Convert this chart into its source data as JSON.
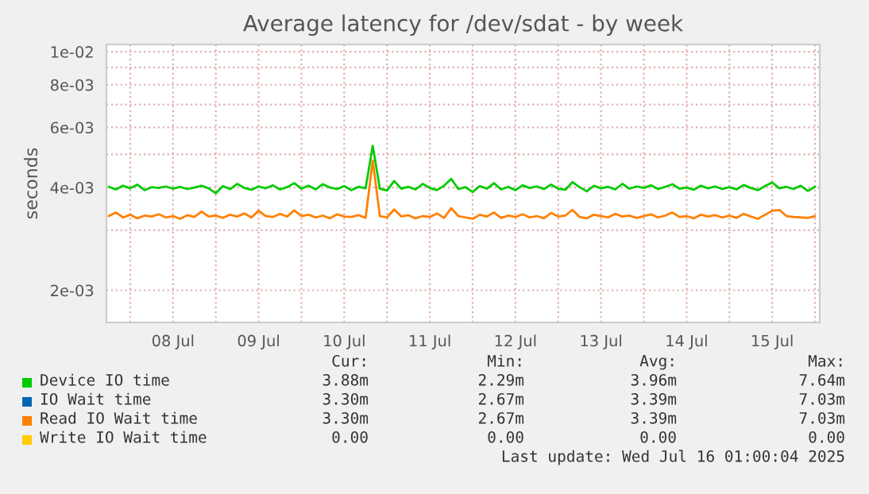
{
  "chart_data": {
    "type": "line",
    "title": "Average latency for /dev/sdat - by week",
    "ylabel": "seconds",
    "x": [
      "2025-07-07T18:00",
      "2025-07-07T20:00",
      "2025-07-07T22:00",
      "2025-07-08T00:00",
      "2025-07-08T02:00",
      "2025-07-08T04:00",
      "2025-07-08T06:00",
      "2025-07-08T08:00",
      "2025-07-08T10:00",
      "2025-07-08T12:00",
      "2025-07-08T14:00",
      "2025-07-08T16:00",
      "2025-07-08T18:00",
      "2025-07-08T20:00",
      "2025-07-08T22:00",
      "2025-07-09T00:00",
      "2025-07-09T02:00",
      "2025-07-09T04:00",
      "2025-07-09T06:00",
      "2025-07-09T08:00",
      "2025-07-09T10:00",
      "2025-07-09T12:00",
      "2025-07-09T14:00",
      "2025-07-09T16:00",
      "2025-07-09T18:00",
      "2025-07-09T20:00",
      "2025-07-09T22:00",
      "2025-07-10T00:00",
      "2025-07-10T02:00",
      "2025-07-10T04:00",
      "2025-07-10T06:00",
      "2025-07-10T08:00",
      "2025-07-10T10:00",
      "2025-07-10T12:00",
      "2025-07-10T14:00",
      "2025-07-10T16:00",
      "2025-07-10T18:00",
      "2025-07-10T20:00",
      "2025-07-10T22:00",
      "2025-07-11T00:00",
      "2025-07-11T02:00",
      "2025-07-11T04:00",
      "2025-07-11T06:00",
      "2025-07-11T08:00",
      "2025-07-11T10:00",
      "2025-07-11T12:00",
      "2025-07-11T14:00",
      "2025-07-11T16:00",
      "2025-07-11T18:00",
      "2025-07-11T20:00",
      "2025-07-11T22:00",
      "2025-07-12T00:00",
      "2025-07-12T02:00",
      "2025-07-12T04:00",
      "2025-07-12T06:00",
      "2025-07-12T08:00",
      "2025-07-12T10:00",
      "2025-07-12T12:00",
      "2025-07-12T14:00",
      "2025-07-12T16:00",
      "2025-07-12T18:00",
      "2025-07-12T20:00",
      "2025-07-12T22:00",
      "2025-07-13T00:00",
      "2025-07-13T02:00",
      "2025-07-13T04:00",
      "2025-07-13T06:00",
      "2025-07-13T08:00",
      "2025-07-13T10:00",
      "2025-07-13T12:00",
      "2025-07-13T14:00",
      "2025-07-13T16:00",
      "2025-07-13T18:00",
      "2025-07-13T20:00",
      "2025-07-13T22:00",
      "2025-07-14T00:00",
      "2025-07-14T02:00",
      "2025-07-14T04:00",
      "2025-07-14T06:00",
      "2025-07-14T08:00",
      "2025-07-14T10:00",
      "2025-07-14T12:00",
      "2025-07-14T14:00",
      "2025-07-14T16:00",
      "2025-07-14T18:00",
      "2025-07-14T20:00",
      "2025-07-14T22:00",
      "2025-07-15T00:00",
      "2025-07-15T02:00",
      "2025-07-15T04:00",
      "2025-07-15T06:00",
      "2025-07-15T08:00",
      "2025-07-15T10:00",
      "2025-07-15T12:00",
      "2025-07-15T14:00",
      "2025-07-15T16:00",
      "2025-07-15T18:00",
      "2025-07-15T20:00",
      "2025-07-15T22:00",
      "2025-07-16T00:00"
    ],
    "series": [
      {
        "name": "Device IO time",
        "color": "#00cc00",
        "values": [
          0.00402,
          0.00395,
          0.00405,
          0.00398,
          0.00408,
          0.00393,
          0.00401,
          0.00399,
          0.00403,
          0.00397,
          0.00402,
          0.00396,
          0.004,
          0.00405,
          0.00398,
          0.00385,
          0.00404,
          0.00396,
          0.0041,
          0.00399,
          0.00394,
          0.00403,
          0.00398,
          0.00406,
          0.00395,
          0.00401,
          0.00412,
          0.00397,
          0.00405,
          0.00395,
          0.00409,
          0.004,
          0.00396,
          0.00404,
          0.00393,
          0.00402,
          0.00398,
          0.0053,
          0.00397,
          0.00392,
          0.00418,
          0.00397,
          0.00402,
          0.00395,
          0.0041,
          0.00399,
          0.00393,
          0.00405,
          0.00424,
          0.00396,
          0.00401,
          0.00388,
          0.00404,
          0.00397,
          0.00412,
          0.00395,
          0.00402,
          0.00393,
          0.00406,
          0.00399,
          0.00403,
          0.00396,
          0.00408,
          0.00397,
          0.00394,
          0.00415,
          0.00401,
          0.0039,
          0.00405,
          0.00398,
          0.00402,
          0.00395,
          0.0041,
          0.00397,
          0.00403,
          0.00399,
          0.00406,
          0.00396,
          0.00402,
          0.00409,
          0.00397,
          0.004,
          0.00394,
          0.00405,
          0.00398,
          0.00403,
          0.00396,
          0.00401,
          0.00395,
          0.00407,
          0.00399,
          0.00393,
          0.00404,
          0.00414,
          0.00398,
          0.00402,
          0.00396,
          0.00405,
          0.00391,
          0.00402
        ]
      },
      {
        "name": "IO Wait time",
        "color": "#0066b3",
        "values": [
          null,
          null,
          null,
          null,
          null,
          null,
          null,
          null,
          null,
          null,
          null,
          null,
          null,
          null,
          null,
          null,
          null,
          null,
          null,
          null,
          null,
          null,
          null,
          null,
          null,
          null,
          null,
          null,
          null,
          null,
          null,
          null,
          null,
          null,
          null,
          null,
          null,
          null,
          null,
          null,
          null,
          null,
          null,
          null,
          null,
          null,
          null,
          null,
          null,
          null,
          null,
          null,
          null,
          null,
          null,
          null,
          null,
          null,
          null,
          null,
          null,
          null,
          null,
          null,
          null,
          null,
          null,
          null,
          null,
          null,
          null,
          null,
          null,
          null,
          null,
          null,
          null,
          null,
          null,
          null,
          null,
          null,
          null,
          null,
          null,
          null,
          null,
          null,
          null,
          null,
          null,
          null,
          null,
          null,
          null,
          null,
          null,
          null,
          null,
          null
        ]
      },
      {
        "name": "Read IO Wait time",
        "color": "#ff8000",
        "values": [
          0.0033,
          0.00338,
          0.00327,
          0.00333,
          0.00325,
          0.00331,
          0.00329,
          0.00334,
          0.00327,
          0.0033,
          0.00324,
          0.00332,
          0.00328,
          0.0034,
          0.00329,
          0.00331,
          0.00326,
          0.00333,
          0.00329,
          0.00336,
          0.00327,
          0.00342,
          0.0033,
          0.00328,
          0.00335,
          0.00329,
          0.00343,
          0.0033,
          0.00333,
          0.00327,
          0.00331,
          0.00325,
          0.00334,
          0.00329,
          0.00328,
          0.00332,
          0.00326,
          0.0048,
          0.0033,
          0.00327,
          0.00345,
          0.00329,
          0.00332,
          0.00325,
          0.0033,
          0.00328,
          0.00336,
          0.00326,
          0.00348,
          0.0033,
          0.00327,
          0.00324,
          0.00333,
          0.00329,
          0.00338,
          0.00326,
          0.00331,
          0.00328,
          0.00334,
          0.00327,
          0.0033,
          0.00325,
          0.00337,
          0.00329,
          0.00331,
          0.00344,
          0.00328,
          0.00325,
          0.00333,
          0.0033,
          0.00327,
          0.00335,
          0.00329,
          0.00331,
          0.00326,
          0.0033,
          0.00334,
          0.00327,
          0.00331,
          0.00338,
          0.00328,
          0.0033,
          0.00325,
          0.00333,
          0.00329,
          0.00332,
          0.00327,
          0.00331,
          0.00326,
          0.00335,
          0.00329,
          0.00324,
          0.00333,
          0.00342,
          0.00344,
          0.0033,
          0.00328,
          0.00327,
          0.00326,
          0.0033
        ]
      },
      {
        "name": "Write IO Wait time",
        "color": "#ffcc00",
        "values": [
          null,
          null,
          null,
          null,
          null,
          null,
          null,
          null,
          null,
          null,
          null,
          null,
          null,
          null,
          null,
          null,
          null,
          null,
          null,
          null,
          null,
          null,
          null,
          null,
          null,
          null,
          null,
          null,
          null,
          null,
          null,
          null,
          null,
          null,
          null,
          null,
          null,
          null,
          null,
          null,
          null,
          null,
          null,
          null,
          null,
          null,
          null,
          null,
          null,
          null,
          null,
          null,
          null,
          null,
          null,
          null,
          null,
          null,
          null,
          null,
          null,
          null,
          null,
          null,
          null,
          null,
          null,
          null,
          null,
          null,
          null,
          null,
          null,
          null,
          null,
          null,
          null,
          null,
          null,
          null,
          null,
          null,
          null,
          null,
          null,
          null,
          null,
          null,
          null,
          null,
          null,
          null,
          null,
          null,
          null,
          null,
          null,
          null,
          null,
          null
        ]
      }
    ],
    "log": "y",
    "xlim": [
      "2025-07-07T17:20",
      "2025-07-16T01:20"
    ],
    "xticks": [
      {
        "value": "2025-07-08T00:00",
        "label": null
      },
      {
        "value": "2025-07-08T12:00",
        "label": "08 Jul"
      },
      {
        "value": "2025-07-09T00:00",
        "label": null
      },
      {
        "value": "2025-07-09T12:00",
        "label": "09 Jul"
      },
      {
        "value": "2025-07-10T00:00",
        "label": null
      },
      {
        "value": "2025-07-10T12:00",
        "label": "10 Jul"
      },
      {
        "value": "2025-07-11T00:00",
        "label": null
      },
      {
        "value": "2025-07-11T12:00",
        "label": "11 Jul"
      },
      {
        "value": "2025-07-12T00:00",
        "label": null
      },
      {
        "value": "2025-07-12T12:00",
        "label": "12 Jul"
      },
      {
        "value": "2025-07-13T00:00",
        "label": null
      },
      {
        "value": "2025-07-13T12:00",
        "label": "13 Jul"
      },
      {
        "value": "2025-07-14T00:00",
        "label": null
      },
      {
        "value": "2025-07-14T12:00",
        "label": "14 Jul"
      },
      {
        "value": "2025-07-15T00:00",
        "label": null
      },
      {
        "value": "2025-07-15T12:00",
        "label": "15 Jul"
      },
      {
        "value": "2025-07-16T00:00",
        "label": null
      }
    ],
    "ylim": [
      0.00161,
      0.0105
    ],
    "yticks": [
      {
        "value": 0.002,
        "label": "2e-03"
      },
      {
        "value": 0.003,
        "label": null
      },
      {
        "value": 0.004,
        "label": "4e-03"
      },
      {
        "value": 0.005,
        "label": null
      },
      {
        "value": 0.006,
        "label": "6e-03"
      },
      {
        "value": 0.007,
        "label": null
      },
      {
        "value": 0.008,
        "label": "8e-03"
      },
      {
        "value": 0.009,
        "label": null
      },
      {
        "value": 0.01,
        "label": "1e-02"
      }
    ],
    "grid": true,
    "legend": "bottom",
    "annotations": [
      "Cur:",
      "Min:",
      "Avg:",
      "Max:",
      "3.88m",
      "2.29m",
      "3.96m",
      "7.64m",
      "3.30m",
      "2.67m",
      "3.39m",
      "7.03m",
      "3.30m",
      "2.67m",
      "3.39m",
      "7.03m",
      "0.00",
      "0.00",
      "0.00",
      "0.00",
      "Last update: Wed Jul 16 01:00:04 2025"
    ]
  }
}
